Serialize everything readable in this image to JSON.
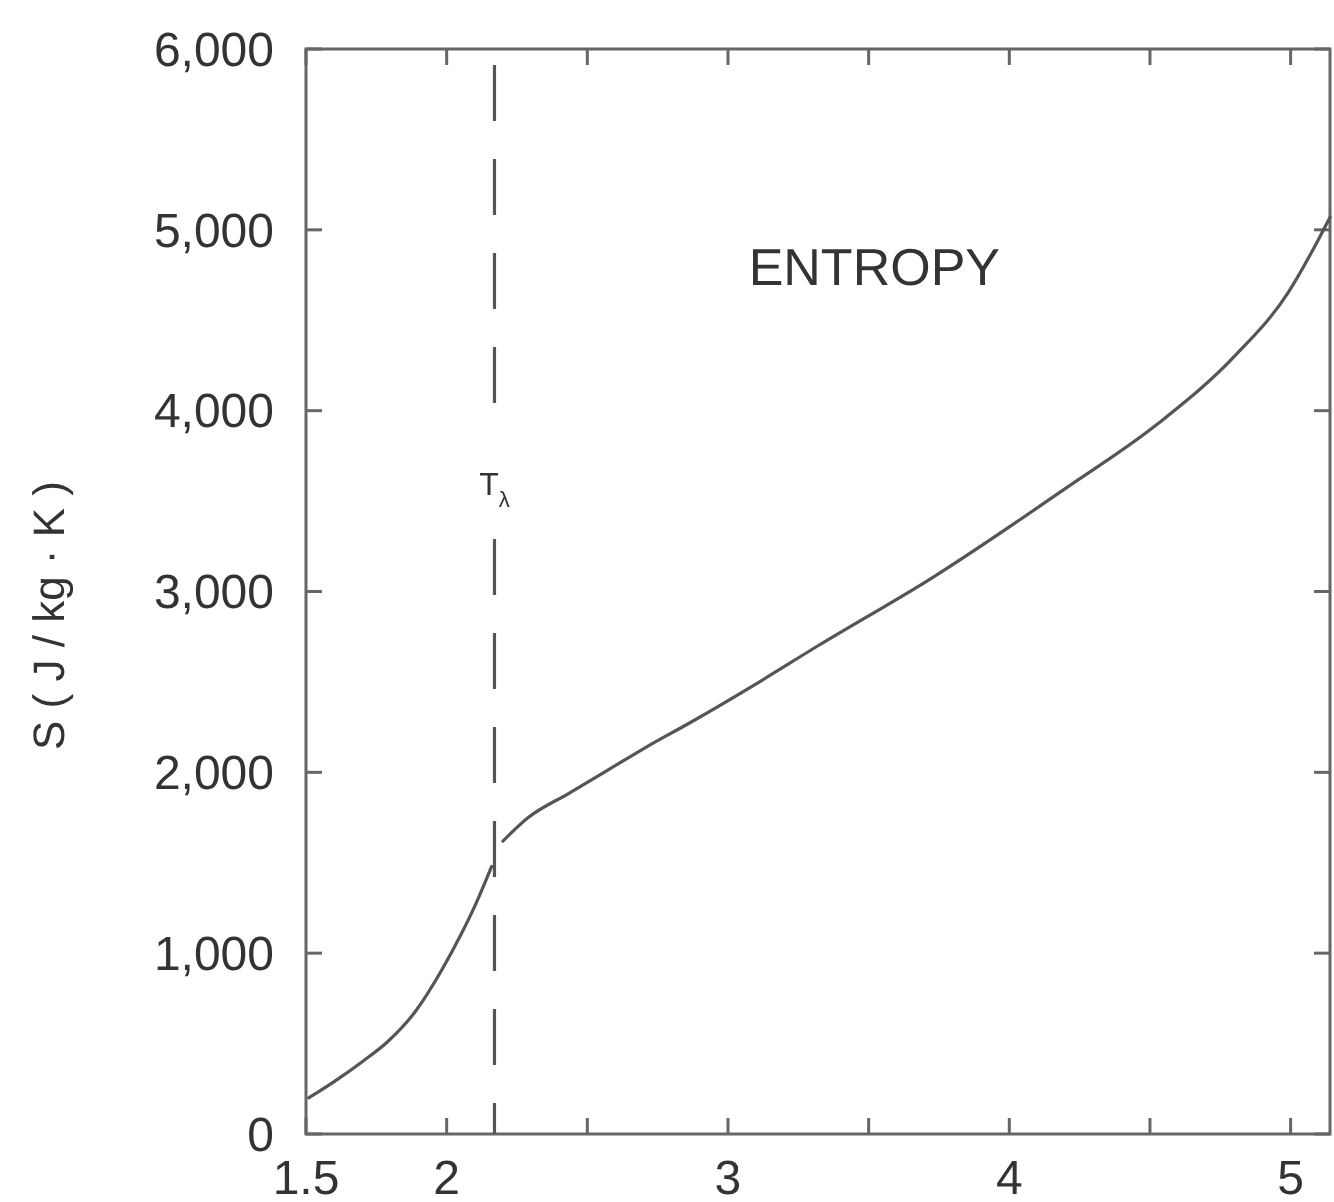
{
  "chart_data": {
    "type": "line",
    "title": "ENTROPY",
    "ylabel": "S ( J / kg · K )",
    "xlim": [
      1.5,
      5.14
    ],
    "xticks": [
      1.5,
      2,
      {
        "value": 2.5,
        "label": null
      },
      3,
      {
        "value": 3.5,
        "label": null
      },
      4,
      {
        "value": 4.5,
        "label": null
      },
      5
    ],
    "ylim": [
      0,
      6000
    ],
    "yticks": [
      0,
      {
        "value": 1000,
        "label": "1,000"
      },
      {
        "value": 2000,
        "label": "2,000"
      },
      {
        "value": 3000,
        "label": "3,000"
      },
      {
        "value": 4000,
        "label": "4,000"
      },
      {
        "value": 5000,
        "label": "5,000"
      },
      {
        "value": 6000,
        "label": "6,000"
      }
    ],
    "x": [
      1.51,
      1.6,
      1.7,
      1.79,
      1.89,
      1.98,
      2.05,
      2.1,
      2.16,
      2.18,
      2.2,
      2.29,
      2.43,
      2.57,
      2.71,
      2.86,
      3.09,
      3.32,
      3.73,
      4.2,
      4.53,
      4.8,
      4.99,
      5.1,
      5.14
    ],
    "series": [
      {
        "color": "#555555",
        "values": [
          200,
          290,
          400,
          510,
          680,
          900,
          1100,
          1260,
          1480,
          null,
          1620,
          1750,
          1880,
          2010,
          2140,
          2270,
          2480,
          2700,
          3080,
          3570,
          3930,
          4300,
          4650,
          4950,
          5070
        ]
      }
    ],
    "ref_lines": [
      {
        "axis": "x",
        "value": 2.17,
        "label": "T$_{λ}$",
        "line_style": "dashed",
        "color": "#555555"
      }
    ]
  }
}
